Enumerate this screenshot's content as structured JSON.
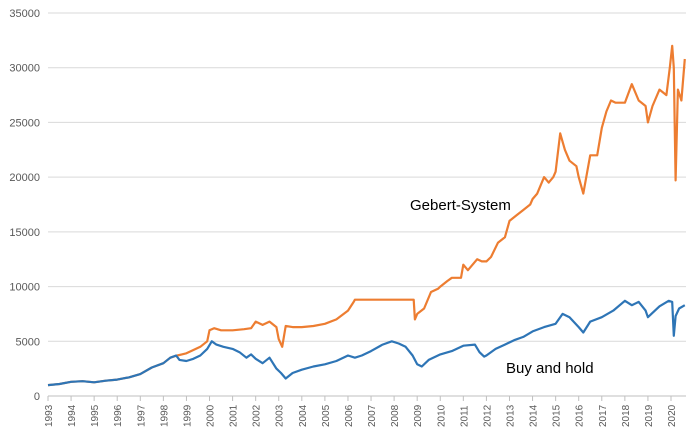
{
  "chart_data": {
    "type": "line",
    "title": "",
    "xlabel": "",
    "ylabel": "",
    "x_ticks": [
      "1993",
      "1994",
      "1995",
      "1996",
      "1997",
      "1998",
      "1999",
      "2000",
      "2001",
      "2002",
      "2003",
      "2004",
      "2005",
      "2006",
      "2007",
      "2008",
      "2009",
      "2010",
      "2011",
      "2012",
      "2013",
      "2014",
      "2015",
      "2016",
      "2017",
      "2018",
      "2019",
      "2020"
    ],
    "y_ticks": [
      "0",
      "5000",
      "10000",
      "15000",
      "20000",
      "25000",
      "30000",
      "35000"
    ],
    "xlim": [
      1993.0,
      2020.65
    ],
    "ylim": [
      0,
      35000
    ],
    "grid": "horizontal",
    "legend": "none",
    "annotations": [
      "Gebert-System",
      "Buy and hold"
    ],
    "series": [
      {
        "color": "#ED7D31",
        "x": [
          1993.0,
          1993.5,
          1994.0,
          1994.5,
          1995.0,
          1995.5,
          1996.0,
          1996.5,
          1997.0,
          1997.5,
          1998.0,
          1998.3,
          1998.6,
          1998.8,
          1999.0,
          1999.3,
          1999.6,
          1999.9,
          2000.0,
          2000.2,
          2000.5,
          2001.0,
          2001.5,
          2001.8,
          2002.0,
          2002.3,
          2002.6,
          2002.9,
          2003.0,
          2003.15,
          2003.3,
          2003.6,
          2004.0,
          2004.5,
          2005.0,
          2005.5,
          2006.0,
          2006.25,
          2006.3,
          2007.0,
          2008.0,
          2008.85,
          2008.9,
          2009.0,
          2009.3,
          2009.6,
          2009.9,
          2010.0,
          2010.3,
          2010.5,
          2010.9,
          2011.0,
          2011.2,
          2011.6,
          2011.8,
          2012.0,
          2012.2,
          2012.5,
          2012.8,
          2013.0,
          2013.3,
          2013.6,
          2013.9,
          2014.0,
          2014.2,
          2014.5,
          2014.7,
          2014.9,
          2015.0,
          2015.2,
          2015.4,
          2015.6,
          2015.9,
          2016.0,
          2016.2,
          2016.5,
          2016.8,
          2017.0,
          2017.2,
          2017.4,
          2017.6,
          2017.9,
          2018.0,
          2018.3,
          2018.6,
          2018.9,
          2019.0,
          2019.2,
          2019.5,
          2019.8,
          2019.95,
          2020.05,
          2020.12,
          2020.2,
          2020.3,
          2020.45,
          2020.6
        ],
        "y": [
          1000,
          1100,
          1300,
          1350,
          1250,
          1400,
          1500,
          1700,
          2000,
          2600,
          3000,
          3500,
          3700,
          3800,
          3900,
          4200,
          4500,
          5000,
          6000,
          6200,
          6000,
          6000,
          6100,
          6200,
          6800,
          6500,
          6800,
          6300,
          5200,
          4500,
          6400,
          6300,
          6300,
          6400,
          6600,
          7000,
          7800,
          8600,
          8800,
          8800,
          8800,
          8800,
          7000,
          7500,
          8000,
          9500,
          9800,
          10000,
          10500,
          10800,
          10800,
          12000,
          11500,
          12500,
          12300,
          12300,
          12700,
          14000,
          14500,
          16000,
          16500,
          17000,
          17500,
          18000,
          18500,
          20000,
          19500,
          20000,
          20500,
          24000,
          22500,
          21500,
          21000,
          20000,
          18500,
          22000,
          22000,
          24500,
          26000,
          27000,
          26800,
          26800,
          26800,
          28500,
          27000,
          26500,
          25000,
          26500,
          28000,
          27500,
          30000,
          32000,
          30000,
          19700,
          28000,
          27000,
          30800
        ]
      },
      {
        "color": "#2E75B6",
        "x": [
          1993.0,
          1993.5,
          1994.0,
          1994.5,
          1995.0,
          1995.5,
          1996.0,
          1996.5,
          1997.0,
          1997.5,
          1998.0,
          1998.3,
          1998.55,
          1998.7,
          1999.0,
          1999.3,
          1999.6,
          1999.9,
          2000.1,
          2000.3,
          2000.6,
          2001.0,
          2001.3,
          2001.6,
          2001.8,
          2002.0,
          2002.3,
          2002.6,
          2002.9,
          2003.1,
          2003.3,
          2003.6,
          2004.0,
          2004.5,
          2005.0,
          2005.5,
          2006.0,
          2006.3,
          2006.6,
          2007.0,
          2007.5,
          2007.9,
          2008.2,
          2008.5,
          2008.8,
          2009.0,
          2009.2,
          2009.5,
          2010.0,
          2010.5,
          2011.0,
          2011.5,
          2011.7,
          2011.9,
          2012.0,
          2012.4,
          2012.8,
          2013.2,
          2013.6,
          2014.0,
          2014.5,
          2015.0,
          2015.3,
          2015.6,
          2016.0,
          2016.2,
          2016.5,
          2017.0,
          2017.5,
          2018.0,
          2018.3,
          2018.6,
          2018.9,
          2019.0,
          2019.5,
          2019.9,
          2020.05,
          2020.12,
          2020.2,
          2020.35,
          2020.6
        ],
        "y": [
          1000,
          1100,
          1300,
          1350,
          1250,
          1400,
          1500,
          1700,
          2000,
          2600,
          3000,
          3500,
          3700,
          3300,
          3200,
          3400,
          3700,
          4300,
          5000,
          4700,
          4500,
          4300,
          4000,
          3500,
          3800,
          3400,
          3000,
          3500,
          2500,
          2100,
          1600,
          2100,
          2400,
          2700,
          2900,
          3200,
          3700,
          3500,
          3700,
          4100,
          4700,
          5000,
          4800,
          4500,
          3700,
          2900,
          2700,
          3300,
          3800,
          4100,
          4600,
          4700,
          4000,
          3600,
          3700,
          4300,
          4700,
          5100,
          5400,
          5900,
          6300,
          6600,
          7500,
          7200,
          6300,
          5800,
          6800,
          7200,
          7800,
          8700,
          8300,
          8600,
          7800,
          7200,
          8200,
          8700,
          8600,
          5500,
          7300,
          8000,
          8300
        ]
      }
    ]
  }
}
